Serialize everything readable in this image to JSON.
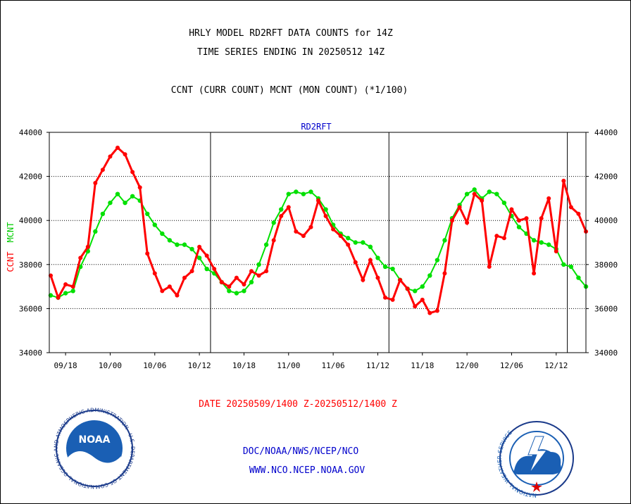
{
  "header": {
    "title_line1": "HRLY MODEL RD2RFT DATA COUNTS for 14Z",
    "title_line2": "TIME SERIES ENDING IN 20250512 14Z",
    "subtitle": "CCNT (CURR COUNT) MCNT (MON COUNT) (*1/100)",
    "panel_label": "RD2RFT"
  },
  "footer": {
    "date_range": "DATE 20250509/1400 Z-20250512/1400 Z",
    "org_path": "DOC/NOAA/NWS/NCEP/NCO",
    "website": "WWW.NCO.NCEP.NOAA.GOV",
    "noaa_logo_text": "NOAA",
    "noaa_ring_text": "NATIONAL OCEANIC AND ATMOSPHERIC ADMINISTRATION · U.S. DEPARTMENT OF COMMERCE",
    "nws_ring_text": "NATIONAL WEATHER SERVICE"
  },
  "colors": {
    "ccnt": "#ff0000",
    "mcnt": "#00e000",
    "date_text": "#ff0000",
    "link_text": "#0000cc",
    "panel_label": "#0000cc"
  },
  "chart_data": {
    "type": "line",
    "y_axis_label_ccnt": "CCNT",
    "y_axis_label_mcnt": "MCNT",
    "ylim": [
      34000,
      44000
    ],
    "y_ticks": [
      "34000",
      "36000",
      "38000",
      "40000",
      "42000",
      "44000"
    ],
    "x_tick_labels": [
      "09/18",
      "10/00",
      "10/06",
      "10/12",
      "10/18",
      "11/00",
      "11/06",
      "11/12",
      "11/18",
      "12/00",
      "12/06",
      "12/12"
    ],
    "grid": "horizontal",
    "series": [
      {
        "name": "CCNT",
        "values": [
          37500,
          36500,
          37100,
          37000,
          38300,
          38800,
          41700,
          42300,
          42900,
          43300,
          43000,
          42200,
          41500,
          38500,
          37600,
          36800,
          37000,
          36600,
          37400,
          37700,
          38800,
          38400,
          37800,
          37200,
          37000,
          37400,
          37100,
          37700,
          37500,
          37700,
          39100,
          40200,
          40600,
          39500,
          39300,
          39700,
          40900,
          40200,
          39600,
          39300,
          38900,
          38100,
          37300,
          38200,
          37400,
          36500,
          36400,
          37300,
          36900,
          36100,
          36400,
          35800,
          35900,
          37600,
          40000,
          40600,
          39900,
          41200,
          40900,
          37900,
          39300,
          39200,
          40500,
          40000,
          40100,
          37600,
          40100,
          41000,
          38600,
          41800,
          40600,
          40300,
          39500
        ]
      },
      {
        "name": "MCNT",
        "values": [
          36600,
          36500,
          36700,
          36800,
          37900,
          38600,
          39500,
          40300,
          40800,
          41200,
          40800,
          41100,
          40900,
          40300,
          39800,
          39400,
          39100,
          38900,
          38900,
          38700,
          38300,
          37800,
          37600,
          37200,
          36800,
          36700,
          36800,
          37200,
          38000,
          38900,
          39900,
          40500,
          41200,
          41300,
          41200,
          41300,
          41000,
          40500,
          39800,
          39400,
          39200,
          39000,
          39000,
          38800,
          38300,
          37900,
          37800,
          37300,
          36900,
          36800,
          37000,
          37500,
          38200,
          39100,
          40100,
          40700,
          41200,
          41400,
          41000,
          41300,
          41200,
          40800,
          40200,
          39700,
          39400,
          39100,
          39000,
          38900,
          38700,
          38000,
          37900,
          37400,
          37000
        ]
      }
    ]
  }
}
